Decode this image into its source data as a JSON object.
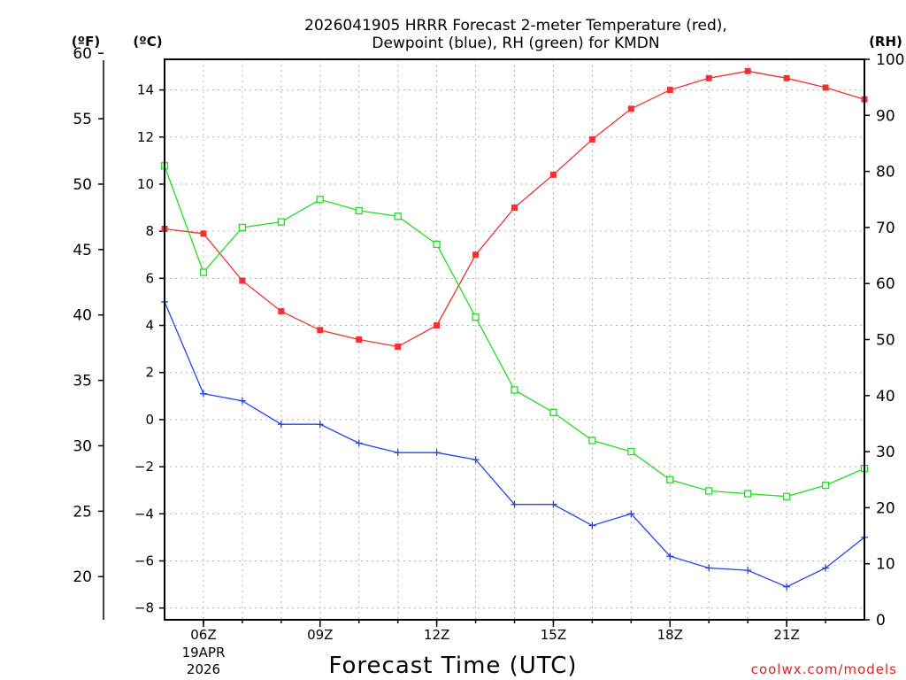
{
  "chart_data": {
    "type": "line",
    "title_line1": "2026041905 HRRR Forecast 2-meter Temperature (red),",
    "title_line2": "Dewpoint (blue), RH (green) for KMDN",
    "unit_f": "(ºF)",
    "unit_c": "(ºC)",
    "unit_rh": "(RH)",
    "xlabel": "Forecast Time (UTC)",
    "credit": "coolwx.com/models",
    "date_line1": "19APR",
    "date_line2": "2026",
    "x_hours": [
      5,
      6,
      7,
      8,
      9,
      10,
      11,
      12,
      13,
      14,
      15,
      16,
      17,
      18,
      19,
      20,
      21,
      22,
      23
    ],
    "x_ticks": [
      {
        "hour": 6,
        "label": "06Z"
      },
      {
        "hour": 9,
        "label": "09Z"
      },
      {
        "hour": 12,
        "label": "12Z"
      },
      {
        "hour": 15,
        "label": "15Z"
      },
      {
        "hour": 18,
        "label": "18Z"
      },
      {
        "hour": 21,
        "label": "21Z"
      }
    ],
    "xlim": [
      5,
      23
    ],
    "ylim_c": [
      -8.5,
      15.3
    ],
    "ylim_rh": [
      0,
      100
    ],
    "c_ticks": [
      "-8",
      "-6",
      "-4",
      "-2",
      "0",
      "2",
      "4",
      "6",
      "8",
      "10",
      "12",
      "14"
    ],
    "f_ticks": [
      "20",
      "25",
      "30",
      "35",
      "40",
      "45",
      "50",
      "55",
      "60"
    ],
    "rh_ticks": [
      "0",
      "10",
      "20",
      "30",
      "40",
      "50",
      "60",
      "70",
      "80",
      "90",
      "100"
    ],
    "series": [
      {
        "name": "Temperature",
        "unit": "C",
        "color": "#ee3333",
        "marker": "filled-square",
        "values": [
          8.1,
          7.9,
          5.9,
          4.6,
          3.8,
          3.4,
          3.1,
          4.0,
          7.0,
          9.0,
          10.4,
          11.9,
          13.2,
          14.0,
          14.5,
          14.8,
          14.5,
          14.1,
          13.6
        ]
      },
      {
        "name": "Dewpoint",
        "unit": "C",
        "color": "#2244ee",
        "marker": "plus",
        "values": [
          5.0,
          1.1,
          0.8,
          -0.2,
          -0.2,
          -1.0,
          -1.4,
          -1.4,
          -1.7,
          -3.6,
          -3.6,
          -4.5,
          -4.0,
          -5.8,
          -6.3,
          -6.4,
          -7.1,
          -6.3,
          -5.0
        ]
      },
      {
        "name": "RH",
        "unit": "%",
        "color": "#22dd22",
        "marker": "open-square",
        "values": [
          81,
          62,
          70,
          71,
          75,
          73,
          72,
          67,
          54,
          41,
          37,
          32,
          30,
          25,
          23,
          22.5,
          22,
          24,
          27
        ]
      }
    ]
  }
}
